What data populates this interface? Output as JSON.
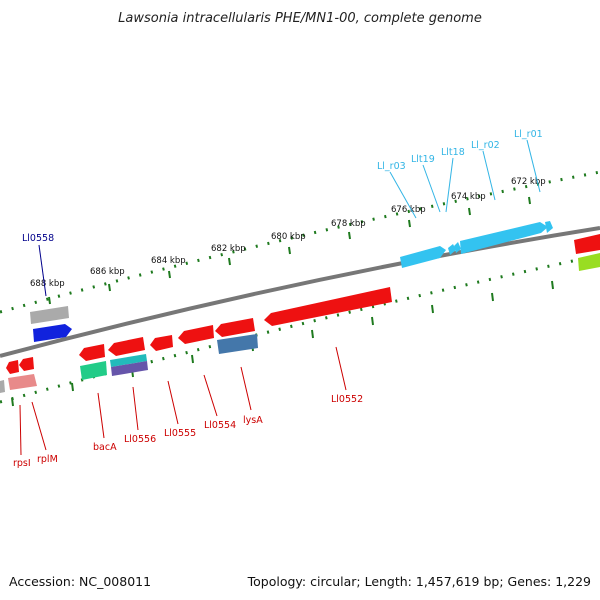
{
  "title": "Lawsonia intracellularis PHE/MN1-00, complete genome",
  "footer": {
    "accession": "Accession: NC_008011",
    "summary": "Topology: circular; Length: 1,457,619 bp; Genes: 1,229"
  },
  "ticks": [
    "688 kbp",
    "686 kbp",
    "684 kbp",
    "682 kbp",
    "680 kbp",
    "678 kbp",
    "676 kbp",
    "674 kbp",
    "672 kbp"
  ],
  "labels": {
    "li0558": "Ll0558",
    "li_r03": "Ll_r03",
    "llt19": "Llt19",
    "llt18": "Llt18",
    "li_r02": "Ll_r02",
    "li_r01": "Ll_r01",
    "rpsi": "rpsI",
    "rplm": "rplM",
    "baca": "bacA",
    "li0556": "Ll0556",
    "li0555": "Ll0555",
    "li0554": "Ll0554",
    "lysa": "lysA",
    "li0552": "Ll0552"
  },
  "colors": {
    "backbone": "#777777",
    "tick": "#1e7a1e",
    "cds_red": "#ee1111",
    "rrna": "#33c3f0",
    "trna_label": "#33b5e5",
    "gene_label_red": "#cc0000",
    "gene_label_blue": "#00008b",
    "blue_gene": "#1122dd",
    "gray_gene": "#aaaaaa",
    "green_gene": "#22cc88",
    "lime_gene": "#99dd22",
    "steel_gene": "#4477aa",
    "pink_gene": "#e88a8a"
  }
}
